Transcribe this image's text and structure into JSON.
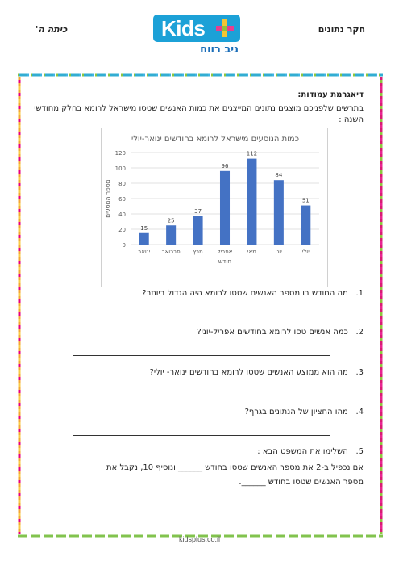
{
  "header": {
    "topic": "חקר נתונים",
    "grade": "כיתה ה'",
    "logo_word": "Kids",
    "logo_sub": "ניב רווח"
  },
  "section_title": "דיאגרמת עמודות:",
  "intro": "בתרשים שלפניכם מוצגים נתונים המייצגים את כמות האנשים שטסו מישראל לרומא בחלק מחודשי השנה :",
  "chart_data": {
    "type": "bar",
    "title": "כמות הנוסעים מישראל לרומא בחודשים ינואר-יולי",
    "xlabel": "חודש",
    "ylabel": "מספר הנוסעים",
    "categories": [
      "ינואר",
      "פברואר",
      "מרץ",
      "אפריל",
      "מאי",
      "יוני",
      "יולי"
    ],
    "values": [
      15,
      25,
      37,
      96,
      112,
      84,
      51
    ],
    "ylim": [
      0,
      120
    ],
    "yticks": [
      0,
      20,
      40,
      60,
      80,
      100,
      120
    ],
    "grid": true,
    "bar_color": "#4472c4"
  },
  "questions": [
    {
      "num": "1.",
      "text": "מה החודש בו מספר האנשים שטסו לרומא היה הגדול ביותר?"
    },
    {
      "num": "2.",
      "text": "כמה אנשים טסו לרומא בחודשים אפריל-יוני?"
    },
    {
      "num": "3.",
      "text": "מה הוא ממוצע האנשים שטסו לרומא בחודשים ינואר- יולי?"
    },
    {
      "num": "4.",
      "text": "מהו החציון של הנתונים בגרף?"
    },
    {
      "num": "5.",
      "text": "השלימו את המשפט הבא :"
    }
  ],
  "q5_line1": "אם נכפיל ב-2 את מספר האנשים שטסו בחודש ______ ונוסיף 10, נקבל את",
  "q5_line2": "מספר האנשים שטסו בחודש ______.",
  "footer": "kidsplus.co.il",
  "colors": {
    "frame_green": "#8cc63f",
    "frame_blue": "#29abe2",
    "frame_pink": "#e6007e",
    "frame_yellow": "#f7c325"
  }
}
